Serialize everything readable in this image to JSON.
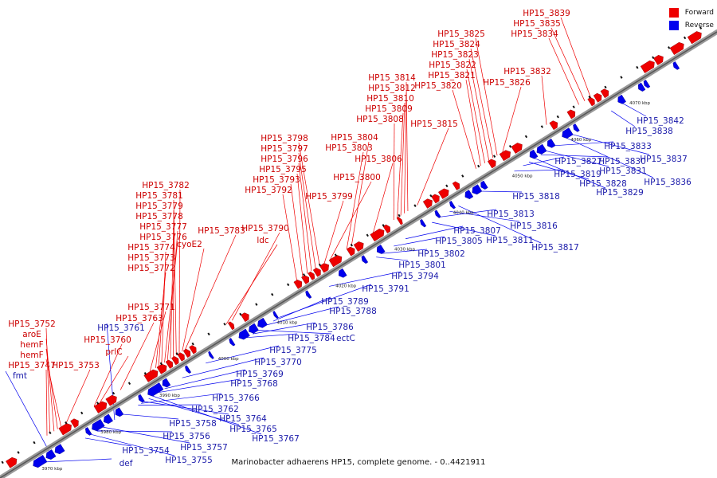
{
  "caption": "Marinobacter adhaerens HP15, complete genome. - 0..4421911",
  "legend": {
    "forward_label": "Forward",
    "forward_color": "#ee0000",
    "reverse_label": "Reverse",
    "reverse_color": "#0000ee"
  },
  "ticks": [
    {
      "pos": 3970,
      "label": "3970 kbp"
    },
    {
      "pos": 3980,
      "label": "3980 kbp"
    },
    {
      "pos": 3990,
      "label": "3990 kbp"
    },
    {
      "pos": 4000,
      "label": "4000 kbp"
    },
    {
      "pos": 4010,
      "label": "4010 kbp"
    },
    {
      "pos": 4020,
      "label": "4020 kbp"
    },
    {
      "pos": 4030,
      "label": "4030 kbp"
    },
    {
      "pos": 4040,
      "label": "4040 kbp"
    },
    {
      "pos": 4050,
      "label": "4050 kbp"
    },
    {
      "pos": 4060,
      "label": "4060 kbp"
    },
    {
      "pos": 4070,
      "label": "4070 kbp"
    }
  ],
  "forward_genes": [
    {
      "label": "HP15_3752",
      "pos": 3972.5
    },
    {
      "label": "aroE",
      "pos": 3973.2
    },
    {
      "label": "hemF",
      "pos": 3973.8
    },
    {
      "label": "hemF",
      "pos": 3974.4
    },
    {
      "label": "HP15_3747",
      "pos": 3972.0
    },
    {
      "label": "HP15_3753",
      "pos": 3975.2
    },
    {
      "label": "prlC",
      "pos": 3981.0
    },
    {
      "label": "HP15_3760",
      "pos": 3980.0
    },
    {
      "label": "HP15_3763",
      "pos": 3984.5
    },
    {
      "label": "HP15_3771",
      "pos": 3989.5
    },
    {
      "label": "HP15_3772",
      "pos": 3990.5
    },
    {
      "label": "HP15_3773",
      "pos": 3991.0
    },
    {
      "label": "HP15_3774",
      "pos": 3991.5
    },
    {
      "label": "HP15_3776",
      "pos": 3992.0
    },
    {
      "label": "HP15_3777",
      "pos": 3992.5
    },
    {
      "label": "HP15_3778",
      "pos": 3993.0
    },
    {
      "label": "HP15_3779",
      "pos": 3993.5
    },
    {
      "label": "HP15_3781",
      "pos": 3994.0
    },
    {
      "label": "HP15_3782",
      "pos": 3994.5
    },
    {
      "label": "cyoE2",
      "pos": 3995.0
    },
    {
      "label": "HP15_3783",
      "pos": 3995.5
    },
    {
      "label": "ldc",
      "pos": 4002.5
    },
    {
      "label": "HP15_3790",
      "pos": 4003.5
    },
    {
      "label": "HP15_3792",
      "pos": 4014.5
    },
    {
      "label": "HP15_3793",
      "pos": 4015.5
    },
    {
      "label": "HP15_3795",
      "pos": 4016.3
    },
    {
      "label": "HP15_3796",
      "pos": 4017.0
    },
    {
      "label": "HP15_3797",
      "pos": 4017.7
    },
    {
      "label": "HP15_3798",
      "pos": 4018.4
    },
    {
      "label": "HP15_3799",
      "pos": 4019.2
    },
    {
      "label": "HP15_3800",
      "pos": 4020.2
    },
    {
      "label": "HP15_3803",
      "pos": 4023.0
    },
    {
      "label": "HP15_3804",
      "pos": 4023.8
    },
    {
      "label": "HP15_3806",
      "pos": 4027.5
    },
    {
      "label": "HP15_3808",
      "pos": 4031.0
    },
    {
      "label": "HP15_3809",
      "pos": 4031.6
    },
    {
      "label": "HP15_3810",
      "pos": 4032.2
    },
    {
      "label": "HP15_3812",
      "pos": 4032.8
    },
    {
      "label": "HP15_3814",
      "pos": 4033.4
    },
    {
      "label": "HP15_3815",
      "pos": 4035.0
    },
    {
      "label": "HP15_3820",
      "pos": 4045.0
    },
    {
      "label": "HP15_3821",
      "pos": 4045.8
    },
    {
      "label": "HP15_3822",
      "pos": 4046.5
    },
    {
      "label": "HP15_3823",
      "pos": 4047.2
    },
    {
      "label": "HP15_3824",
      "pos": 4047.9
    },
    {
      "label": "HP15_3825",
      "pos": 4048.6
    },
    {
      "label": "HP15_3826",
      "pos": 4049.5
    },
    {
      "label": "HP15_3832",
      "pos": 4057.0
    },
    {
      "label": "HP15_3834",
      "pos": 4062.5
    },
    {
      "label": "HP15_3835",
      "pos": 4063.5
    },
    {
      "label": "HP15_3839",
      "pos": 4064.5
    }
  ],
  "reverse_genes": [
    {
      "label": "fmt",
      "pos": 3971.0
    },
    {
      "label": "def",
      "pos": 3970.0
    },
    {
      "label": "HP15_3754",
      "pos": 3976.5
    },
    {
      "label": "HP15_3755",
      "pos": 3977.5
    },
    {
      "label": "HP15_3756",
      "pos": 3978.5
    },
    {
      "label": "HP15_3757",
      "pos": 3979.5
    },
    {
      "label": "HP15_3758",
      "pos": 3983.0
    },
    {
      "label": "HP15_3761",
      "pos": 3981.5
    },
    {
      "label": "HP15_3762",
      "pos": 3985.5
    },
    {
      "label": "HP15_3764",
      "pos": 3986.5
    },
    {
      "label": "HP15_3765",
      "pos": 3987.3
    },
    {
      "label": "HP15_3766",
      "pos": 3986.0
    },
    {
      "label": "HP15_3767",
      "pos": 3988.0
    },
    {
      "label": "HP15_3768",
      "pos": 3989.0
    },
    {
      "label": "HP15_3769",
      "pos": 3990.0
    },
    {
      "label": "HP15_3770",
      "pos": 3993.0
    },
    {
      "label": "HP15_3775",
      "pos": 3997.0
    },
    {
      "label": "HP15_3784",
      "pos": 4004.0
    },
    {
      "label": "HP15_3786",
      "pos": 4005.0
    },
    {
      "label": "ectC",
      "pos": 4006.0
    },
    {
      "label": "HP15_3788",
      "pos": 4007.5
    },
    {
      "label": "HP15_3789",
      "pos": 4008.5
    },
    {
      "label": "HP15_3791",
      "pos": 4009.5
    },
    {
      "label": "HP15_3794",
      "pos": 4018.0
    },
    {
      "label": "HP15_3801",
      "pos": 4026.0
    },
    {
      "label": "HP15_3802",
      "pos": 4027.0
    },
    {
      "label": "HP15_3805",
      "pos": 4029.0
    },
    {
      "label": "HP15_3807",
      "pos": 4031.0
    },
    {
      "label": "HP15_3811",
      "pos": 4035.5
    },
    {
      "label": "HP15_3813",
      "pos": 4037.0
    },
    {
      "label": "HP15_3816",
      "pos": 4038.5
    },
    {
      "label": "HP15_3817",
      "pos": 4040.0
    },
    {
      "label": "HP15_3818",
      "pos": 4044.0
    },
    {
      "label": "HP15_3819",
      "pos": 4049.5
    },
    {
      "label": "HP15_3827",
      "pos": 4051.0
    },
    {
      "label": "HP15_3828",
      "pos": 4052.0
    },
    {
      "label": "HP15_3829",
      "pos": 4053.0
    },
    {
      "label": "HP15_3830",
      "pos": 4054.0
    },
    {
      "label": "HP15_3831",
      "pos": 4055.0
    },
    {
      "label": "HP15_3833",
      "pos": 4056.5
    },
    {
      "label": "HP15_3836",
      "pos": 4058.5
    },
    {
      "label": "HP15_3837",
      "pos": 4059.5
    },
    {
      "label": "HP15_3838",
      "pos": 4066.0
    },
    {
      "label": "HP15_3842",
      "pos": 4068.0
    }
  ],
  "forward_blocks": [
    [
      3965.0,
      3966.5
    ],
    [
      3974.0,
      3975.8
    ],
    [
      3976.0,
      3977.0
    ],
    [
      3980.0,
      3981.8
    ],
    [
      3982.0,
      3983.5
    ],
    [
      3988.5,
      3990.5
    ],
    [
      3990.7,
      3992.0
    ],
    [
      3992.2,
      3993.0
    ],
    [
      3993.2,
      3994.0
    ],
    [
      3994.2,
      3995.0
    ],
    [
      3995.2,
      3996.0
    ],
    [
      3996.2,
      3997.0
    ],
    [
      4002.8,
      4003.4
    ],
    [
      4005.0,
      4006.0
    ],
    [
      4014.0,
      4015.0
    ],
    [
      4015.3,
      4016.2
    ],
    [
      4016.4,
      4017.1
    ],
    [
      4017.3,
      4018.2
    ],
    [
      4018.4,
      4019.6
    ],
    [
      4020.0,
      4021.8
    ],
    [
      4023.0,
      4024.0
    ],
    [
      4024.2,
      4025.5
    ],
    [
      4027.0,
      4029.0
    ],
    [
      4029.2,
      4030.0
    ],
    [
      4031.5,
      4032.0
    ],
    [
      4036.0,
      4037.2
    ],
    [
      4037.4,
      4038.4
    ],
    [
      4038.6,
      4040.0
    ],
    [
      4041.0,
      4041.8
    ],
    [
      4047.0,
      4048.0
    ],
    [
      4049.0,
      4050.5
    ],
    [
      4051.0,
      4052.5
    ],
    [
      4057.5,
      4058.5
    ],
    [
      4060.5,
      4061.5
    ],
    [
      4064.0,
      4064.8
    ],
    [
      4065.0,
      4066.0
    ],
    [
      4066.2,
      4067.2
    ],
    [
      4073.0,
      4075.0
    ],
    [
      4075.2,
      4076.5
    ],
    [
      4078.0,
      4080.0
    ],
    [
      4081.0,
      4083.0
    ]
  ],
  "reverse_blocks": [
    [
      3968.0,
      3970.0
    ],
    [
      3970.2,
      3971.5
    ],
    [
      3971.7,
      3973.0
    ],
    [
      3977.0,
      3977.6
    ],
    [
      3978.0,
      3979.8
    ],
    [
      3980.0,
      3981.2
    ],
    [
      3982.0,
      3983.0
    ],
    [
      3986.0,
      3986.6
    ],
    [
      3987.5,
      3989.8
    ],
    [
      3990.0,
      3991.0
    ],
    [
      3994.0,
      3994.5
    ],
    [
      3998.0,
      3998.4
    ],
    [
      4001.5,
      4002.0
    ],
    [
      4003.0,
      4004.5
    ],
    [
      4004.7,
      4006.0
    ],
    [
      4006.2,
      4007.5
    ],
    [
      4009.0,
      4009.4
    ],
    [
      4014.5,
      4015.0
    ],
    [
      4020.0,
      4021.0
    ],
    [
      4024.0,
      4024.6
    ],
    [
      4026.5,
      4027.5
    ],
    [
      4034.0,
      4034.5
    ],
    [
      4036.5,
      4037.0
    ],
    [
      4039.0,
      4039.5
    ],
    [
      4041.5,
      4042.5
    ],
    [
      4042.7,
      4044.0
    ],
    [
      4044.2,
      4045.0
    ],
    [
      4052.5,
      4053.5
    ],
    [
      4053.7,
      4055.0
    ],
    [
      4055.5,
      4056.5
    ],
    [
      4058.0,
      4059.5
    ],
    [
      4060.0,
      4060.6
    ],
    [
      4067.5,
      4068.5
    ],
    [
      4071.0,
      4071.8
    ],
    [
      4072.0,
      4072.6
    ],
    [
      4077.0,
      4077.6
    ]
  ]
}
